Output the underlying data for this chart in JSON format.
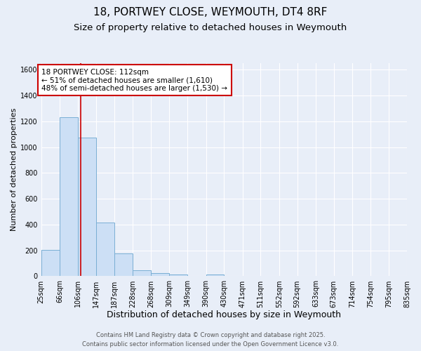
{
  "title_line1": "18, PORTWEY CLOSE, WEYMOUTH, DT4 8RF",
  "title_line2": "Size of property relative to detached houses in Weymouth",
  "xlabel": "Distribution of detached houses by size in Weymouth",
  "ylabel": "Number of detached properties",
  "bar_values": [
    205,
    1230,
    1075,
    415,
    175,
    45,
    25,
    15,
    0,
    15,
    0,
    0,
    0,
    0,
    0,
    0,
    0,
    0,
    0,
    0
  ],
  "bin_edges": [
    25,
    66,
    106,
    147,
    187,
    228,
    268,
    309,
    349,
    390,
    430,
    471,
    511,
    552,
    592,
    633,
    673,
    714,
    754,
    795,
    835
  ],
  "bin_labels": [
    "25sqm",
    "66sqm",
    "106sqm",
    "147sqm",
    "187sqm",
    "228sqm",
    "268sqm",
    "309sqm",
    "349sqm",
    "390sqm",
    "430sqm",
    "471sqm",
    "511sqm",
    "552sqm",
    "592sqm",
    "633sqm",
    "673sqm",
    "714sqm",
    "754sqm",
    "795sqm",
    "835sqm"
  ],
  "bar_color": "#ccdff5",
  "bar_edgecolor": "#7aafd4",
  "vline_x": 112,
  "vline_color": "#cc0000",
  "annotation_text": "18 PORTWEY CLOSE: 112sqm\n← 51% of detached houses are smaller (1,610)\n48% of semi-detached houses are larger (1,530) →",
  "annotation_box_color": "#cc0000",
  "annotation_bg": "#ffffff",
  "ylim": [
    0,
    1650
  ],
  "background_color": "#e8eef8",
  "grid_color": "#ffffff",
  "footer_line1": "Contains HM Land Registry data © Crown copyright and database right 2025.",
  "footer_line2": "Contains public sector information licensed under the Open Government Licence v3.0.",
  "title_fontsize": 11,
  "subtitle_fontsize": 9.5,
  "xlabel_fontsize": 9,
  "ylabel_fontsize": 8,
  "tick_fontsize": 7,
  "annotation_fontsize": 7.5,
  "footer_fontsize": 6
}
